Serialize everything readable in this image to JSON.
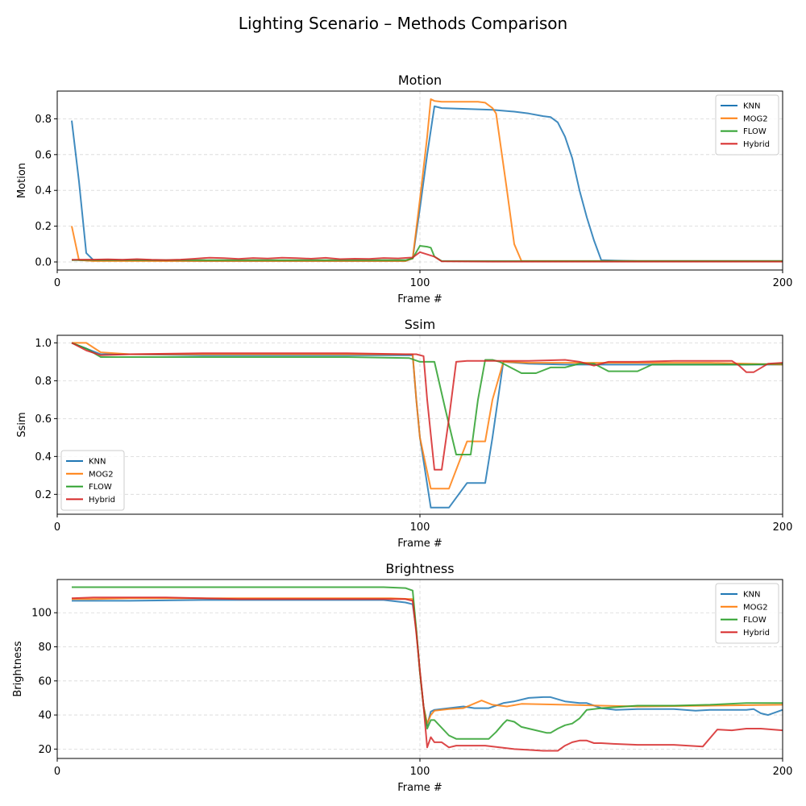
{
  "suptitle": "Lighting Scenario – Methods Comparison",
  "colors": {
    "KNN": "#1f77b4",
    "MOG2": "#ff7f0e",
    "FLOW": "#2ca02c",
    "Hybrid": "#d62728"
  },
  "chart_data": [
    {
      "type": "line",
      "title": "Motion",
      "xlabel": "Frame #",
      "ylabel": "Motion",
      "xlim": [
        0,
        200
      ],
      "ylim": [
        -0.045,
        0.955
      ],
      "xticks": [
        0,
        100,
        200
      ],
      "yticks": [
        0.0,
        0.2,
        0.4,
        0.6,
        0.8
      ],
      "ytick_labels": [
        "0.0",
        "0.2",
        "0.4",
        "0.6",
        "0.8"
      ],
      "grid": true,
      "legend": "upper right",
      "series": [
        {
          "name": "KNN",
          "x": [
            4,
            6,
            8,
            10,
            20,
            40,
            60,
            80,
            96,
            98,
            100,
            102,
            104,
            106,
            120,
            126,
            130,
            134,
            136,
            138,
            140,
            142,
            144,
            146,
            148,
            150,
            160,
            180,
            200
          ],
          "y": [
            0.79,
            0.45,
            0.05,
            0.01,
            0.01,
            0.005,
            0.005,
            0.005,
            0.005,
            0.02,
            0.3,
            0.6,
            0.87,
            0.86,
            0.85,
            0.84,
            0.83,
            0.815,
            0.81,
            0.78,
            0.7,
            0.58,
            0.4,
            0.25,
            0.12,
            0.01,
            0.005,
            0.005,
            0.005
          ]
        },
        {
          "name": "MOG2",
          "x": [
            4,
            6,
            10,
            20,
            40,
            60,
            80,
            96,
            98,
            100,
            102,
            103,
            104,
            106,
            116,
            118,
            120,
            121,
            124,
            126,
            128,
            140,
            160,
            180,
            200
          ],
          "y": [
            0.2,
            0.01,
            0.005,
            0.005,
            0.005,
            0.005,
            0.005,
            0.005,
            0.02,
            0.35,
            0.7,
            0.91,
            0.9,
            0.895,
            0.895,
            0.89,
            0.86,
            0.83,
            0.4,
            0.1,
            0.005,
            0.005,
            0.005,
            0.005,
            0.005
          ]
        },
        {
          "name": "FLOW",
          "x": [
            4,
            10,
            20,
            40,
            60,
            80,
            96,
            98,
            100,
            102,
            103,
            104,
            106,
            120,
            140,
            160,
            180,
            200
          ],
          "y": [
            0.01,
            0.01,
            0.01,
            0.01,
            0.01,
            0.01,
            0.01,
            0.02,
            0.09,
            0.085,
            0.08,
            0.03,
            0.005,
            0.005,
            0.005,
            0.005,
            0.005,
            0.005
          ]
        },
        {
          "name": "Hybrid",
          "x": [
            4,
            10,
            14,
            18,
            22,
            26,
            30,
            34,
            38,
            42,
            46,
            50,
            54,
            58,
            62,
            66,
            70,
            74,
            78,
            82,
            86,
            90,
            94,
            98,
            100,
            104,
            106,
            120,
            140,
            160,
            180,
            200
          ],
          "y": [
            0.012,
            0.013,
            0.015,
            0.012,
            0.016,
            0.012,
            0.011,
            0.013,
            0.018,
            0.024,
            0.021,
            0.017,
            0.022,
            0.019,
            0.024,
            0.021,
            0.018,
            0.023,
            0.016,
            0.018,
            0.017,
            0.022,
            0.02,
            0.025,
            0.055,
            0.03,
            0.003,
            0.002,
            0.002,
            0.002,
            0.002,
            0.002
          ]
        }
      ]
    },
    {
      "type": "line",
      "title": "Ssim",
      "xlabel": "Frame #",
      "ylabel": "Ssim",
      "xlim": [
        0,
        200
      ],
      "ylim": [
        0.095,
        1.04
      ],
      "xticks": [
        0,
        100,
        200
      ],
      "yticks": [
        0.2,
        0.4,
        0.6,
        0.8,
        1.0
      ],
      "ytick_labels": [
        "0.2",
        "0.4",
        "0.6",
        "0.8",
        "1.0"
      ],
      "grid": true,
      "legend": "lower left",
      "series": [
        {
          "name": "KNN",
          "x": [
            4,
            8,
            12,
            20,
            40,
            60,
            80,
            98,
            99,
            100,
            103,
            108,
            113,
            118,
            120,
            123,
            130,
            140,
            160,
            180,
            200
          ],
          "y": [
            1.0,
            0.97,
            0.94,
            0.94,
            0.935,
            0.935,
            0.935,
            0.935,
            0.7,
            0.5,
            0.13,
            0.13,
            0.26,
            0.26,
            0.5,
            0.9,
            0.89,
            0.885,
            0.885,
            0.885,
            0.885
          ]
        },
        {
          "name": "MOG2",
          "x": [
            4,
            8,
            12,
            20,
            40,
            60,
            80,
            98,
            99,
            100,
            103,
            108,
            113,
            118,
            120,
            123,
            130,
            140,
            160,
            180,
            200
          ],
          "y": [
            1.0,
            1.0,
            0.95,
            0.94,
            0.94,
            0.94,
            0.94,
            0.94,
            0.7,
            0.5,
            0.23,
            0.23,
            0.48,
            0.48,
            0.7,
            0.9,
            0.895,
            0.895,
            0.895,
            0.895,
            0.885
          ]
        },
        {
          "name": "FLOW",
          "x": [
            4,
            8,
            12,
            20,
            40,
            60,
            80,
            97,
            100,
            104,
            107,
            110,
            114,
            116,
            118,
            120,
            122,
            126,
            128,
            132,
            136,
            140,
            144,
            148,
            152,
            156,
            160,
            164,
            170,
            180,
            190,
            200
          ],
          "y": [
            1.0,
            0.97,
            0.925,
            0.925,
            0.925,
            0.925,
            0.925,
            0.92,
            0.9,
            0.9,
            0.65,
            0.41,
            0.41,
            0.7,
            0.91,
            0.91,
            0.9,
            0.86,
            0.84,
            0.84,
            0.87,
            0.87,
            0.89,
            0.89,
            0.85,
            0.85,
            0.85,
            0.885,
            0.885,
            0.885,
            0.885,
            0.89
          ]
        },
        {
          "name": "Hybrid",
          "x": [
            4,
            8,
            12,
            20,
            40,
            60,
            80,
            96,
            99,
            101,
            102,
            104,
            106,
            108,
            110,
            113,
            116,
            120,
            130,
            140,
            144,
            148,
            152,
            160,
            170,
            180,
            186,
            188,
            190,
            192,
            196,
            200
          ],
          "y": [
            1.0,
            0.96,
            0.935,
            0.94,
            0.945,
            0.945,
            0.945,
            0.94,
            0.94,
            0.93,
            0.7,
            0.33,
            0.33,
            0.6,
            0.9,
            0.905,
            0.905,
            0.905,
            0.905,
            0.91,
            0.9,
            0.88,
            0.9,
            0.9,
            0.905,
            0.905,
            0.905,
            0.88,
            0.845,
            0.845,
            0.89,
            0.895
          ]
        }
      ]
    },
    {
      "type": "line",
      "title": "Brightness",
      "xlabel": "Frame #",
      "ylabel": "Brightness",
      "xlim": [
        0,
        200
      ],
      "ylim": [
        14.5,
        119.5
      ],
      "xticks": [
        0,
        100,
        200
      ],
      "yticks": [
        20,
        40,
        60,
        80,
        100
      ],
      "ytick_labels": [
        "20",
        "40",
        "60",
        "80",
        "100"
      ],
      "grid": true,
      "legend": "upper right",
      "series": [
        {
          "name": "KNN",
          "x": [
            4,
            10,
            20,
            40,
            60,
            80,
            90,
            96,
            98,
            99,
            100,
            101,
            102,
            103,
            104,
            108,
            112,
            115,
            119,
            123,
            126,
            130,
            134,
            136,
            140,
            144,
            146,
            150,
            154,
            160,
            170,
            176,
            180,
            185,
            190,
            192,
            194,
            196,
            200
          ],
          "y": [
            107,
            107,
            107,
            107.5,
            107.5,
            107.5,
            107.5,
            106,
            105,
            90,
            65,
            45,
            34,
            42,
            43,
            44,
            45,
            44,
            44,
            47,
            48,
            50,
            50.5,
            50.5,
            48,
            47,
            47,
            44,
            43,
            43.5,
            43.5,
            42.5,
            43,
            43,
            43,
            43.5,
            41,
            40,
            43
          ]
        },
        {
          "name": "MOG2",
          "x": [
            4,
            10,
            20,
            40,
            60,
            80,
            92,
            98,
            99,
            100,
            101,
            102,
            103,
            104,
            108,
            112,
            117,
            120,
            124,
            128,
            140,
            150,
            160,
            180,
            200
          ],
          "y": [
            108,
            108,
            108.5,
            108.5,
            108.5,
            108.5,
            108.5,
            108,
            90,
            65,
            45,
            35,
            40,
            42.5,
            43.5,
            44,
            48.5,
            46,
            45,
            46.5,
            46,
            45.5,
            45,
            45.5,
            46
          ]
        },
        {
          "name": "FLOW",
          "x": [
            4,
            10,
            20,
            40,
            60,
            80,
            90,
            96,
            98,
            99,
            100,
            101,
            102,
            103,
            104,
            108,
            110,
            112,
            115,
            119,
            121,
            123,
            124,
            126,
            128,
            130,
            132,
            135,
            136,
            138,
            140,
            142,
            144,
            146,
            150,
            160,
            170,
            180,
            190,
            200
          ],
          "y": [
            115,
            115,
            115,
            115,
            115,
            115,
            115,
            114.5,
            113,
            90,
            65,
            45,
            32,
            37,
            37,
            28,
            26,
            26,
            26,
            26,
            30,
            35,
            37,
            36,
            33,
            32,
            31,
            29.5,
            29.5,
            32,
            34,
            35,
            38,
            43,
            44,
            45.5,
            45.5,
            46,
            47,
            47
          ]
        },
        {
          "name": "Hybrid",
          "x": [
            4,
            10,
            20,
            30,
            40,
            50,
            60,
            70,
            80,
            90,
            96,
            98,
            99,
            100,
            101,
            102,
            103,
            104,
            106,
            108,
            110,
            114,
            118,
            122,
            126,
            130,
            134,
            138,
            140,
            142,
            144,
            146,
            148,
            150,
            154,
            160,
            170,
            178,
            182,
            186,
            190,
            194,
            200
          ],
          "y": [
            108.5,
            109,
            109,
            109,
            108.5,
            108,
            108,
            108,
            108,
            108,
            108,
            107,
            88,
            66,
            45,
            21,
            27,
            24,
            24,
            21,
            22,
            22,
            22,
            21,
            20,
            19.5,
            19,
            19,
            22,
            24,
            25,
            25,
            23.5,
            23.5,
            23,
            22.5,
            22.5,
            21.5,
            31.5,
            31,
            32,
            32,
            31
          ]
        }
      ]
    }
  ]
}
